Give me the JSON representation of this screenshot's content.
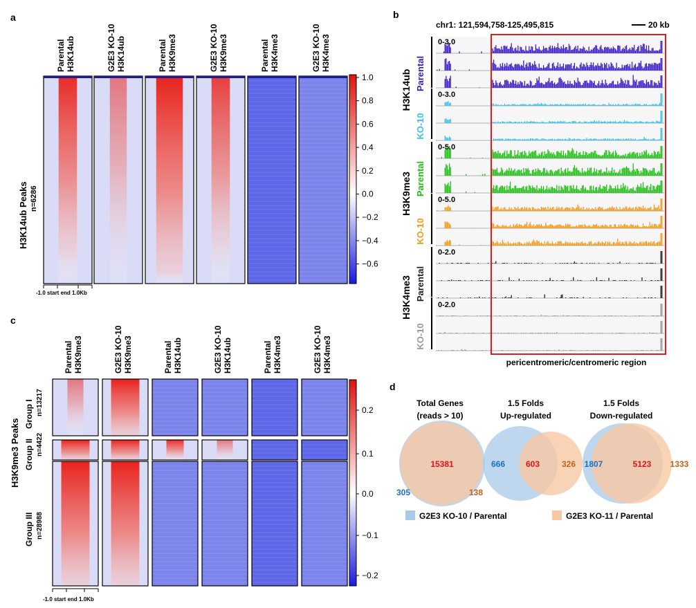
{
  "panel_labels": [
    "a",
    "b",
    "c",
    "d"
  ],
  "panel_a": {
    "columns": [
      {
        "l1": "Parental",
        "l2": "H3K14ub",
        "pattern": "red-strong"
      },
      {
        "l1": "G2E3 KO-10",
        "l2": "H3K14ub",
        "pattern": "red-light"
      },
      {
        "l1": "Parental",
        "l2": "H3K9me3",
        "pattern": "red-broad"
      },
      {
        "l1": "G2E3 KO-10",
        "l2": "H3K9me3",
        "pattern": "red-medium"
      },
      {
        "l1": "Parental",
        "l2": "H3K4me3",
        "pattern": "blue"
      },
      {
        "l1": "G2E3 KO-10",
        "l2": "H3K4me3",
        "pattern": "blue-light"
      }
    ],
    "row_label": "H3K14ub Peaks",
    "row_n": "n=6286",
    "axis_label": "-1.0 start end 1.0Kb",
    "colorbar": {
      "ticks": [
        "1.0",
        "0.8",
        "0.6",
        "0.4",
        "0.2",
        "0.0",
        "−0.2",
        "−0.4",
        "−0.6"
      ],
      "min": -0.75,
      "max": 1.0,
      "low_color": "#1a1ae0",
      "mid_color": "#ffffff",
      "high_color": "#e0120f"
    }
  },
  "panel_b": {
    "region": "chr1: 121,594,758-125,495,815",
    "scale": "20 kb",
    "region_label": "pericentromeric/centromeric region",
    "marks": [
      "H3K14ub",
      "H3K9me3",
      "H3K4me3"
    ],
    "groups": [
      {
        "mark": "H3K14ub",
        "sample": "Parental",
        "range": "0-3.0",
        "color": "#3a1bc8",
        "tracks": 3,
        "level": "high"
      },
      {
        "mark": "H3K14ub",
        "sample": "KO-10",
        "range": "0-3.0",
        "color": "#35c3ea",
        "tracks": 3,
        "level": "low"
      },
      {
        "mark": "H3K9me3",
        "sample": "Parental",
        "range": "0-5.0",
        "color": "#1cbf12",
        "tracks": 3,
        "level": "high"
      },
      {
        "mark": "H3K9me3",
        "sample": "KO-10",
        "range": "0-5.0",
        "color": "#f29a16",
        "tracks": 3,
        "level": "mid"
      },
      {
        "mark": "H3K4me3",
        "sample": "Parental",
        "range": "0-2.0",
        "color": "#222222",
        "tracks": 3,
        "level": "sparse"
      },
      {
        "mark": "H3K4me3",
        "sample": "KO-10",
        "range": "0-2.0",
        "color": "#999999",
        "tracks": 3,
        "level": "sparse-low"
      }
    ]
  },
  "panel_c": {
    "columns": [
      {
        "l1": "Parental",
        "l2": "H3K9me3"
      },
      {
        "l1": "G2E3 KO-10",
        "l2": "H3K9me3"
      },
      {
        "l1": "Parental",
        "l2": "H3K14ub"
      },
      {
        "l1": "G2E3 KO-10",
        "l2": "H3K14ub"
      },
      {
        "l1": "Parental",
        "l2": "H3K4me3"
      },
      {
        "l1": "G2E3 KO-10",
        "l2": "H3K4me3"
      }
    ],
    "row_label": "H3K9me3 Peaks",
    "groups": [
      {
        "name": "Group I",
        "n": "n=13217"
      },
      {
        "name": "Group II",
        "n": "n=4422"
      },
      {
        "name": "Group III",
        "n": "n=28988"
      }
    ],
    "axis_label": "-1.0 start end 1.0Kb",
    "colorbar": {
      "ticks": [
        "0.2",
        "0.1",
        "0.0",
        "−0.1",
        "−0.2"
      ],
      "min": -0.22,
      "max": 0.27,
      "low_color": "#1a1ae0",
      "mid_color": "#ffffff",
      "high_color": "#e0120f"
    }
  },
  "panel_d": {
    "venns": [
      {
        "t1": "Total Genes",
        "t2": "(reads > 10)",
        "left": "305",
        "mid": "15381",
        "right": "138"
      },
      {
        "t1": "1.5 Folds",
        "t2": "Up-regulated",
        "left": "666",
        "mid": "603",
        "right": "326"
      },
      {
        "t1": "1.5 Folds",
        "t2": "Down-regulated",
        "left": "1807",
        "mid": "5123",
        "right": "1333"
      }
    ],
    "legend": [
      {
        "label": "G2E3 KO-10 / Parental",
        "color": "#a9c9e8"
      },
      {
        "label": "G2E3 KO-11 / Parental",
        "color": "#f7c8a3"
      }
    ],
    "colors": {
      "left_num": "#1a6fc2",
      "mid_num": "#e3121b",
      "right_num": "#c0621a"
    }
  }
}
